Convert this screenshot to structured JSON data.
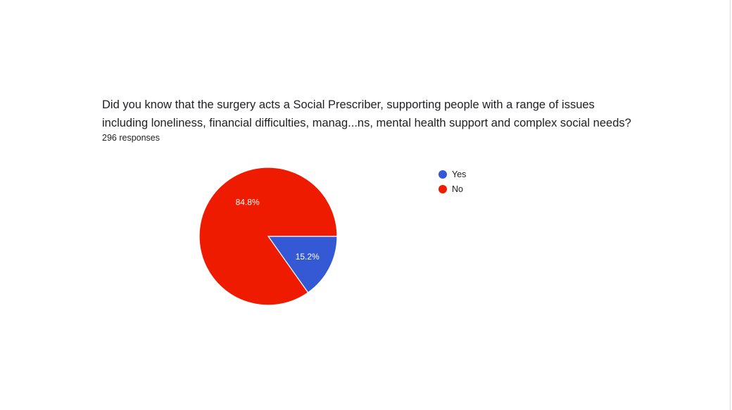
{
  "question": {
    "line1": "Did you know that the surgery acts a Social Prescriber, supporting people with a range of issues",
    "line2": "including loneliness, financial difficulties, manag...ns, mental health support and complex social needs?"
  },
  "responses_label": "296 responses",
  "chart_data": {
    "type": "pie",
    "categories": [
      "Yes",
      "No"
    ],
    "values": [
      15.2,
      84.8
    ],
    "labels": [
      "15.2%",
      "84.8%"
    ],
    "colors": [
      "#3559d4",
      "#ee1b00"
    ],
    "legend_position": "right"
  }
}
